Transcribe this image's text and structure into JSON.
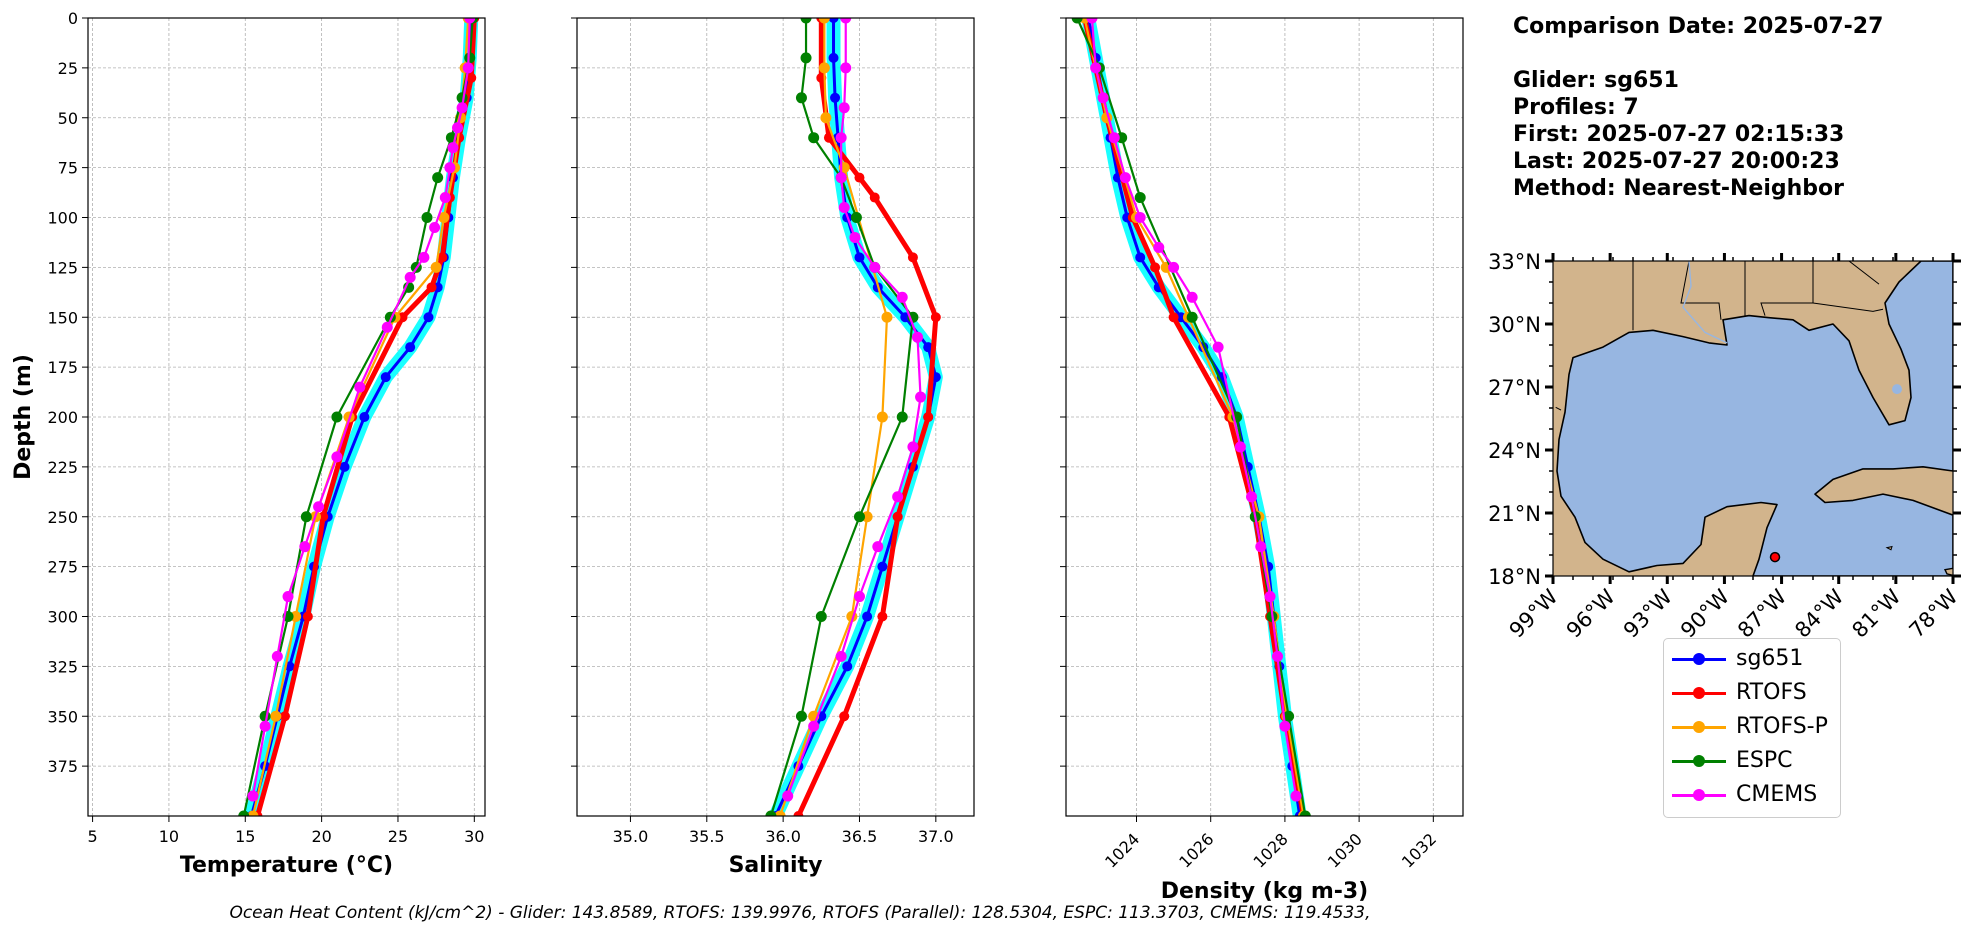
{
  "info": {
    "comparison_date": "Comparison Date: 2025-07-27",
    "glider": "Glider: sg651",
    "profiles": "Profiles: 7",
    "first": "First: 2025-07-27 02:15:33",
    "last": "Last: 2025-07-27 20:00:23",
    "method": "Method: Nearest-Neighbor"
  },
  "footer": "Ocean Heat Content (kJ/cm^2) - Glider: 143.8589,  RTOFS: 139.9976,  RTOFS (Parallel): 128.5304,  ESPC: 113.3703,  CMEMS: 119.4533,",
  "colors": {
    "sg651": "#0000ff",
    "RTOFS": "#ff0000",
    "RTOFS-P": "#ffa500",
    "ESPC": "#008000",
    "CMEMS": "#ff00ff",
    "glider_spread": "#00ffff",
    "land": "#d2b48c",
    "ocean": "#97b6e1"
  },
  "legend": [
    {
      "name": "sg651",
      "color": "#0000ff"
    },
    {
      "name": "RTOFS",
      "color": "#ff0000"
    },
    {
      "name": "RTOFS-P",
      "color": "#ffa500"
    },
    {
      "name": "ESPC",
      "color": "#008000"
    },
    {
      "name": "CMEMS",
      "color": "#ff00ff"
    }
  ],
  "map": {
    "lat_ticks": [
      "33°N",
      "30°N",
      "27°N",
      "24°N",
      "21°N",
      "18°N"
    ],
    "lon_ticks": [
      "99°W",
      "96°W",
      "93°W",
      "90°W",
      "87°W",
      "84°W",
      "81°W",
      "78°W"
    ],
    "lon_range": [
      -98,
      -78
    ],
    "lat_range": [
      18,
      33
    ],
    "glider_position": {
      "lon": -86.9,
      "lat": 18.9
    }
  },
  "chart_data": [
    {
      "type": "line",
      "xlabel": "Temperature (°C)",
      "ylabel": "Depth (m)",
      "xlim": [
        4.7,
        30.7
      ],
      "ylim": [
        400,
        0
      ],
      "xticks": [
        5,
        10,
        15,
        20,
        25,
        30
      ],
      "yticks": [
        0,
        25,
        50,
        75,
        100,
        125,
        150,
        175,
        200,
        225,
        250,
        275,
        300,
        325,
        350,
        375
      ],
      "grid": true,
      "series": [
        {
          "name": "sg651",
          "x": [
            29.8,
            29.7,
            29.5,
            29.0,
            28.6,
            28.3,
            28.0,
            27.6,
            27.0,
            25.8,
            24.2,
            22.8,
            21.5,
            20.4,
            19.5,
            18.8,
            17.9,
            17.1,
            16.3,
            15.4
          ],
          "y": [
            0,
            20,
            40,
            60,
            80,
            100,
            120,
            135,
            150,
            165,
            180,
            200,
            225,
            250,
            275,
            300,
            325,
            350,
            375,
            400
          ]
        },
        {
          "name": "RTOFS",
          "x": [
            30.0,
            29.8,
            29.0,
            28.4,
            27.9,
            27.2,
            25.3,
            22.0,
            20.1,
            19.1,
            17.6,
            15.8
          ],
          "y": [
            0,
            30,
            60,
            90,
            120,
            135,
            150,
            200,
            250,
            300,
            350,
            400
          ]
        },
        {
          "name": "RTOFS-P",
          "x": [
            29.6,
            29.4,
            29.1,
            28.7,
            28.0,
            27.5,
            24.8,
            21.8,
            19.6,
            18.3,
            17.0,
            15.5
          ],
          "y": [
            0,
            25,
            50,
            75,
            100,
            125,
            150,
            200,
            250,
            300,
            350,
            400
          ]
        },
        {
          "name": "ESPC",
          "x": [
            29.9,
            29.7,
            29.2,
            28.5,
            27.6,
            26.9,
            26.2,
            25.7,
            24.5,
            21.0,
            19.0,
            17.8,
            16.3,
            14.9
          ],
          "y": [
            0,
            20,
            40,
            60,
            80,
            100,
            125,
            135,
            150,
            200,
            250,
            300,
            350,
            400
          ]
        },
        {
          "name": "CMEMS",
          "x": [
            29.7,
            29.6,
            29.2,
            28.9,
            28.6,
            28.4,
            28.1,
            27.4,
            26.7,
            25.8,
            24.3,
            22.5,
            21.0,
            19.8,
            18.9,
            17.8,
            17.1,
            16.3,
            15.5
          ],
          "y": [
            0,
            25,
            45,
            55,
            65,
            75,
            90,
            105,
            120,
            130,
            155,
            185,
            220,
            245,
            265,
            290,
            320,
            355,
            390
          ]
        }
      ]
    },
    {
      "type": "line",
      "xlabel": "Salinity",
      "ylabel": "",
      "xlim": [
        34.65,
        37.25
      ],
      "ylim": [
        400,
        0
      ],
      "xticks": [
        35.0,
        35.5,
        36.0,
        36.5,
        37.0
      ],
      "yticks": [
        0,
        25,
        50,
        75,
        100,
        125,
        150,
        175,
        200,
        225,
        250,
        275,
        300,
        325,
        350,
        375
      ],
      "grid": true,
      "series": [
        {
          "name": "sg651",
          "x": [
            36.33,
            36.33,
            36.34,
            36.36,
            36.38,
            36.42,
            36.5,
            36.62,
            36.8,
            36.95,
            37.0,
            36.95,
            36.85,
            36.75,
            36.65,
            36.55,
            36.42,
            36.25,
            36.1,
            35.95
          ],
          "y": [
            0,
            20,
            40,
            60,
            80,
            100,
            120,
            135,
            150,
            165,
            180,
            200,
            225,
            250,
            275,
            300,
            325,
            350,
            375,
            400
          ]
        },
        {
          "name": "RTOFS",
          "x": [
            36.25,
            36.25,
            36.3,
            36.5,
            36.6,
            36.85,
            37.0,
            36.95,
            36.75,
            36.65,
            36.4,
            36.1
          ],
          "y": [
            0,
            30,
            60,
            80,
            90,
            120,
            150,
            200,
            250,
            300,
            350,
            400
          ]
        },
        {
          "name": "RTOFS-P",
          "x": [
            36.27,
            36.27,
            36.28,
            36.4,
            36.68,
            36.65,
            36.55,
            36.45,
            36.2,
            35.98
          ],
          "y": [
            0,
            25,
            50,
            75,
            150,
            200,
            250,
            300,
            350,
            400
          ]
        },
        {
          "name": "ESPC",
          "x": [
            36.15,
            36.15,
            36.12,
            36.2,
            36.38,
            36.48,
            36.6,
            36.85,
            36.78,
            36.5,
            36.25,
            36.12,
            35.92
          ],
          "y": [
            0,
            20,
            40,
            60,
            80,
            100,
            125,
            150,
            200,
            250,
            300,
            350,
            400
          ]
        },
        {
          "name": "CMEMS",
          "x": [
            36.41,
            36.41,
            36.4,
            36.38,
            36.38,
            36.4,
            36.47,
            36.6,
            36.78,
            36.88,
            36.9,
            36.85,
            36.75,
            36.62,
            36.5,
            36.38,
            36.2,
            36.03
          ],
          "y": [
            0,
            25,
            45,
            60,
            80,
            95,
            110,
            125,
            140,
            160,
            190,
            215,
            240,
            265,
            290,
            320,
            355,
            390
          ]
        }
      ]
    },
    {
      "type": "line",
      "xlabel": "Density (kg m-3)",
      "ylabel": "",
      "xlim": [
        1022.1,
        1032.8
      ],
      "ylim": [
        400,
        0
      ],
      "xticks": [
        1024,
        1026,
        1028,
        1030,
        1032
      ],
      "yticks": [
        0,
        25,
        50,
        75,
        100,
        125,
        150,
        175,
        200,
        225,
        250,
        275,
        300,
        325,
        350,
        375
      ],
      "grid": true,
      "series": [
        {
          "name": "sg651",
          "x": [
            1022.7,
            1022.9,
            1023.1,
            1023.3,
            1023.5,
            1023.75,
            1024.1,
            1024.6,
            1025.2,
            1025.8,
            1026.3,
            1026.7,
            1027.0,
            1027.3,
            1027.55,
            1027.7,
            1027.85,
            1028.0,
            1028.2,
            1028.4
          ],
          "y": [
            0,
            20,
            40,
            60,
            80,
            100,
            120,
            135,
            150,
            165,
            180,
            200,
            225,
            250,
            275,
            300,
            325,
            350,
            375,
            400
          ]
        },
        {
          "name": "RTOFS",
          "x": [
            1022.6,
            1023.2,
            1023.9,
            1024.5,
            1025.0,
            1026.5,
            1027.2,
            1027.6,
            1028.0,
            1028.5
          ],
          "y": [
            0,
            50,
            100,
            125,
            150,
            200,
            250,
            300,
            350,
            400
          ]
        },
        {
          "name": "RTOFS-P",
          "x": [
            1022.6,
            1023.2,
            1024.0,
            1024.8,
            1025.4,
            1026.6,
            1027.3,
            1027.7,
            1028.05,
            1028.5
          ],
          "y": [
            0,
            50,
            100,
            125,
            150,
            200,
            250,
            300,
            350,
            400
          ]
        },
        {
          "name": "ESPC",
          "x": [
            1022.4,
            1023.0,
            1023.6,
            1024.1,
            1025.5,
            1026.7,
            1027.2,
            1027.65,
            1028.1,
            1028.55
          ],
          "y": [
            0,
            25,
            60,
            90,
            150,
            200,
            250,
            300,
            350,
            400
          ]
        },
        {
          "name": "CMEMS",
          "x": [
            1022.8,
            1022.9,
            1023.1,
            1023.4,
            1023.7,
            1024.1,
            1024.6,
            1025.0,
            1025.5,
            1026.2,
            1026.8,
            1027.1,
            1027.35,
            1027.6,
            1027.8,
            1028.0,
            1028.3
          ],
          "y": [
            0,
            25,
            40,
            60,
            80,
            100,
            115,
            125,
            140,
            165,
            215,
            240,
            265,
            290,
            320,
            355,
            390
          ]
        }
      ]
    }
  ]
}
